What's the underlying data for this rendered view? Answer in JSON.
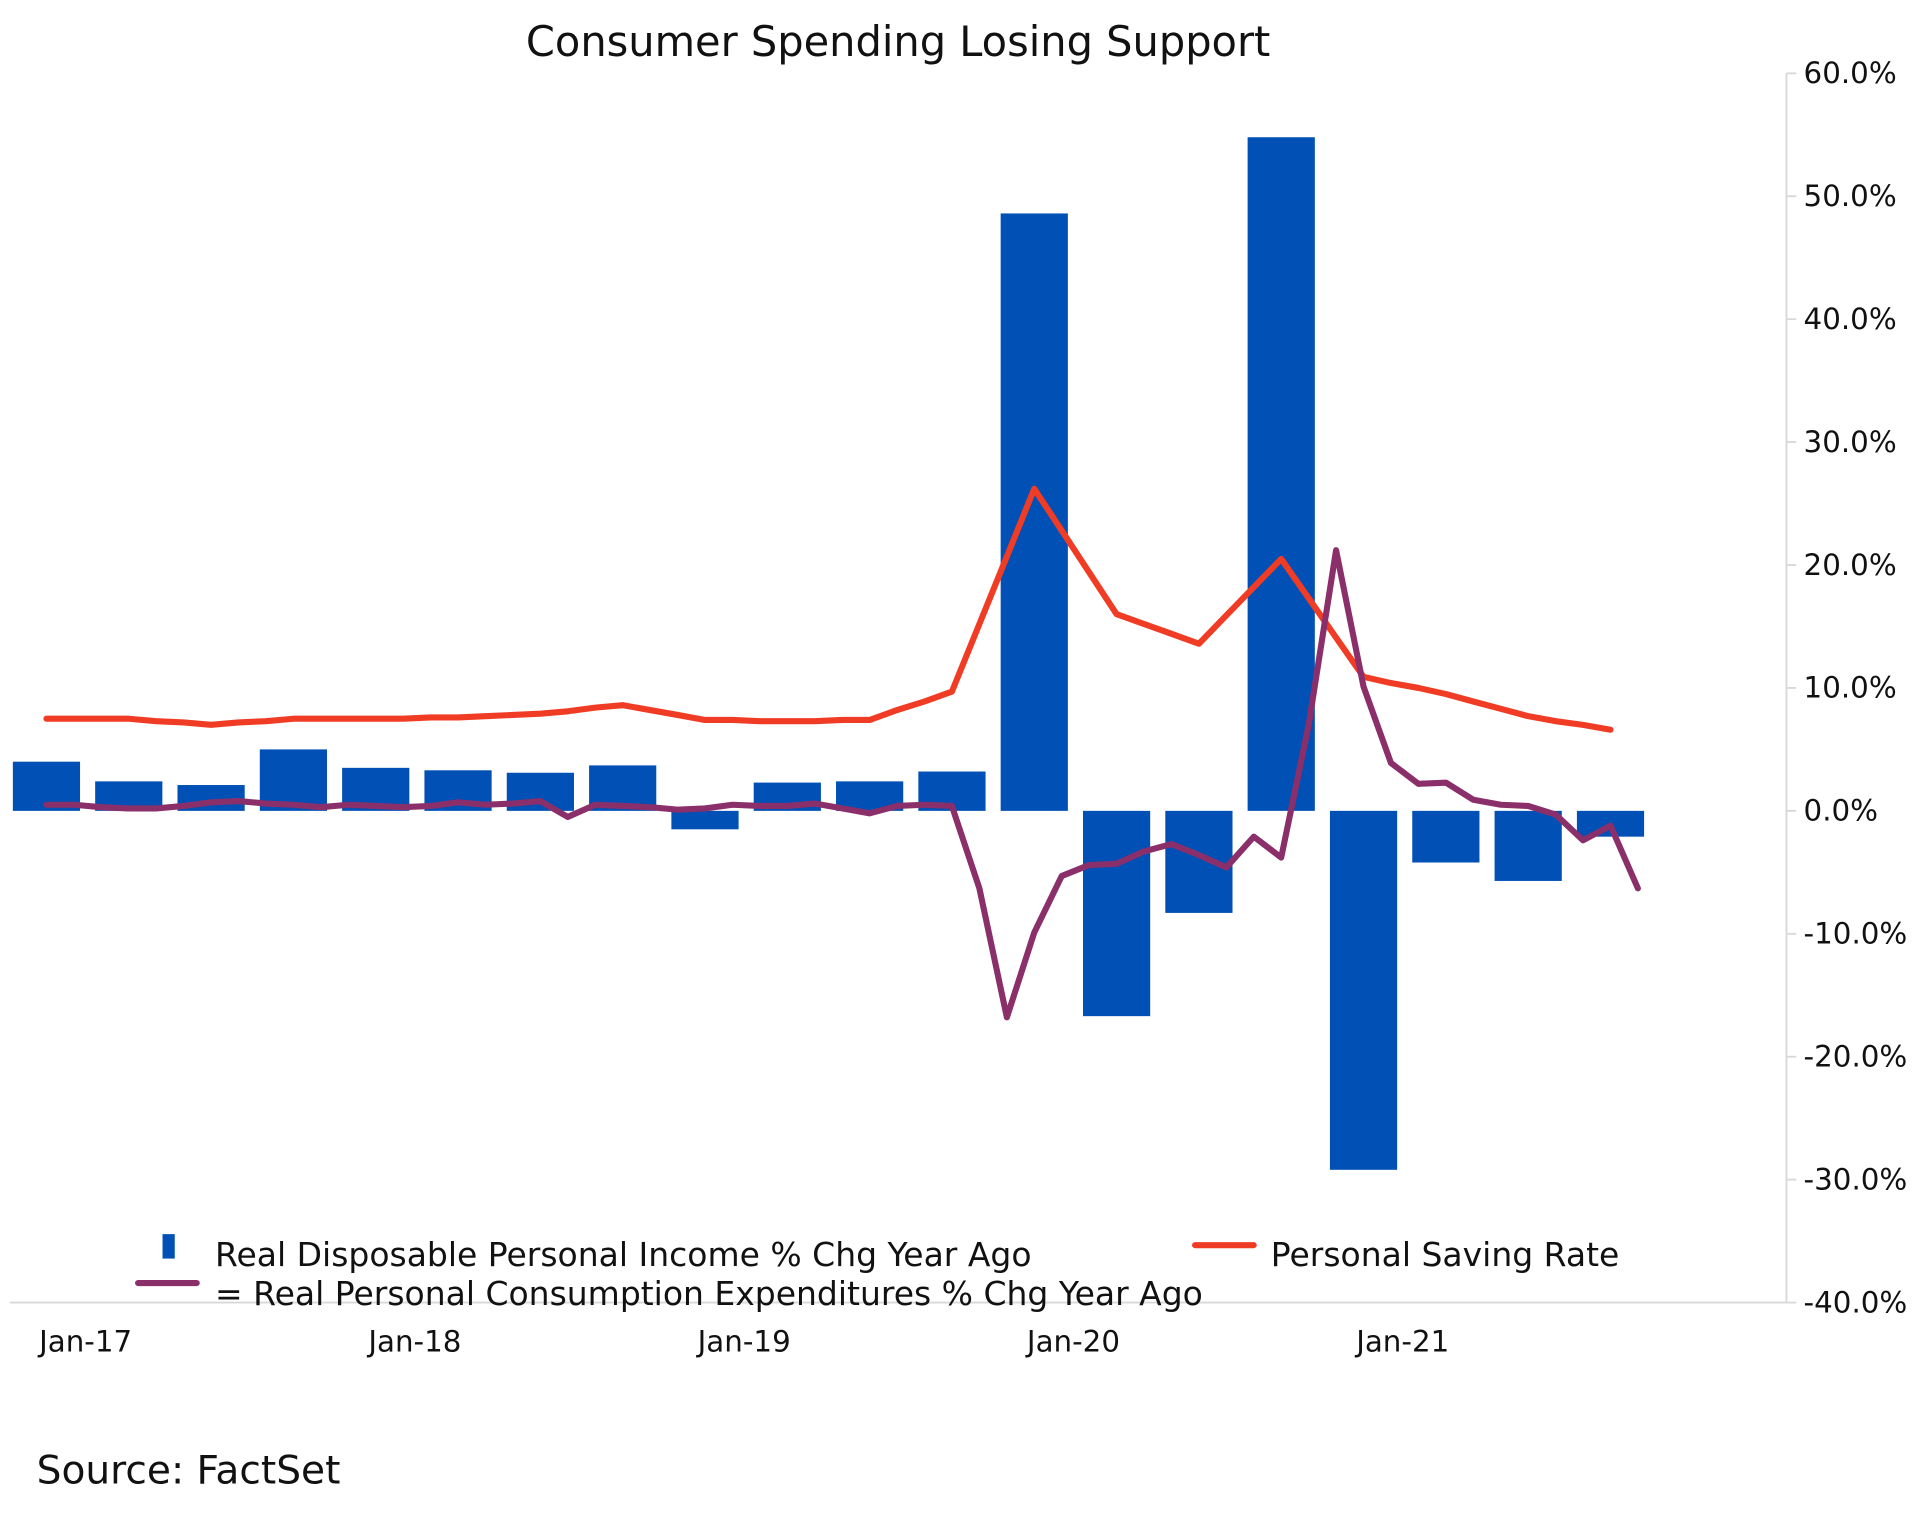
{
  "chart_data": {
    "type": "bar",
    "title": "Consumer Spending Losing Support",
    "source": "Source: FactSet",
    "categories": [
      "Jan-17",
      null,
      null,
      null,
      null,
      null,
      null,
      null,
      null,
      null,
      null,
      null,
      "Jan-18",
      null,
      null,
      null,
      null,
      null,
      null,
      null,
      null,
      null,
      null,
      null,
      "Jan-19",
      null,
      null,
      null,
      null,
      null,
      null,
      null,
      null,
      null,
      null,
      null,
      "Jan-20",
      null,
      null,
      null,
      null,
      null,
      null,
      null,
      null,
      null,
      null,
      null,
      "Jan-21",
      null,
      null,
      null,
      null,
      null,
      null,
      null,
      null,
      null,
      null
    ],
    "series": [
      {
        "name": "Real Disposable Personal Income % Chg Year Ago",
        "type": "bar",
        "color": "#0050b5",
        "values": [
          4.0,
          null,
          null,
          2.4,
          null,
          null,
          2.1,
          null,
          null,
          5.0,
          null,
          null,
          3.5,
          null,
          null,
          3.3,
          null,
          null,
          3.1,
          null,
          null,
          3.7,
          null,
          null,
          -1.5,
          null,
          null,
          2.3,
          null,
          null,
          2.4,
          null,
          null,
          3.2,
          null,
          null,
          48.6,
          null,
          null,
          -16.7,
          null,
          null,
          -8.3,
          null,
          null,
          54.8,
          null,
          null,
          -29.2,
          null,
          null,
          -4.2,
          null,
          null,
          -5.7,
          null,
          null,
          -2.1,
          null
        ]
      },
      {
        "name": "Personal Saving Rate",
        "type": "line",
        "color": "#f03c24",
        "values": [
          7.5,
          7.5,
          7.5,
          7.5,
          7.3,
          7.2,
          7.0,
          7.2,
          7.3,
          7.5,
          7.5,
          7.5,
          7.5,
          7.5,
          7.6,
          7.6,
          7.7,
          7.8,
          7.9,
          8.1,
          8.4,
          8.6,
          8.2,
          7.8,
          7.4,
          7.4,
          7.3,
          7.3,
          7.3,
          7.4,
          7.4,
          8.2,
          8.9,
          9.7,
          15.2,
          20.7,
          26.2,
          22.8,
          19.4,
          16.0,
          15.2,
          14.4,
          13.6,
          15.9,
          18.2,
          20.5,
          17.3,
          14.1,
          10.9,
          10.4,
          10.0,
          9.5,
          8.9,
          8.3,
          7.7,
          7.3,
          7.0,
          6.6,
          null
        ]
      },
      {
        "name": "= Real Personal Consumption Expenditures % Chg Year Ago",
        "type": "line",
        "color": "#8b2f6b",
        "values": [
          0.5,
          0.5,
          0.3,
          0.2,
          0.2,
          0.4,
          0.7,
          0.8,
          0.6,
          0.5,
          0.3,
          0.5,
          0.4,
          0.3,
          0.4,
          0.7,
          0.5,
          0.6,
          0.8,
          -0.5,
          0.5,
          0.4,
          0.3,
          0.1,
          0.2,
          0.5,
          0.4,
          0.4,
          0.6,
          0.2,
          -0.2,
          0.4,
          0.5,
          0.4,
          -6.3,
          -16.8,
          -9.9,
          -5.3,
          -4.4,
          -4.3,
          -3.3,
          -2.7,
          -3.6,
          -4.6,
          -2.1,
          -3.8,
          7.0,
          21.2,
          10.1,
          3.9,
          2.2,
          2.3,
          0.9,
          0.5,
          0.4,
          -0.3,
          -2.4,
          -1.2,
          -6.3
        ]
      }
    ],
    "ylim": [
      -40,
      60
    ],
    "yticks": [
      {
        "value": -40,
        "label": "-40.0%"
      },
      {
        "value": -30,
        "label": "-30.0%"
      },
      {
        "value": -20,
        "label": "-20.0%"
      },
      {
        "value": -10,
        "label": "-10.0%"
      },
      {
        "value": 0,
        "label": "0.0%"
      },
      {
        "value": 10,
        "label": "10.0%"
      },
      {
        "value": 20,
        "label": "20.0%"
      },
      {
        "value": 30,
        "label": "30.0%"
      },
      {
        "value": 40,
        "label": "40.0%"
      },
      {
        "value": 50,
        "label": "50.0%"
      },
      {
        "value": 60,
        "label": "60.0%"
      }
    ],
    "y_axis_side": "right",
    "legend": "bottom"
  }
}
